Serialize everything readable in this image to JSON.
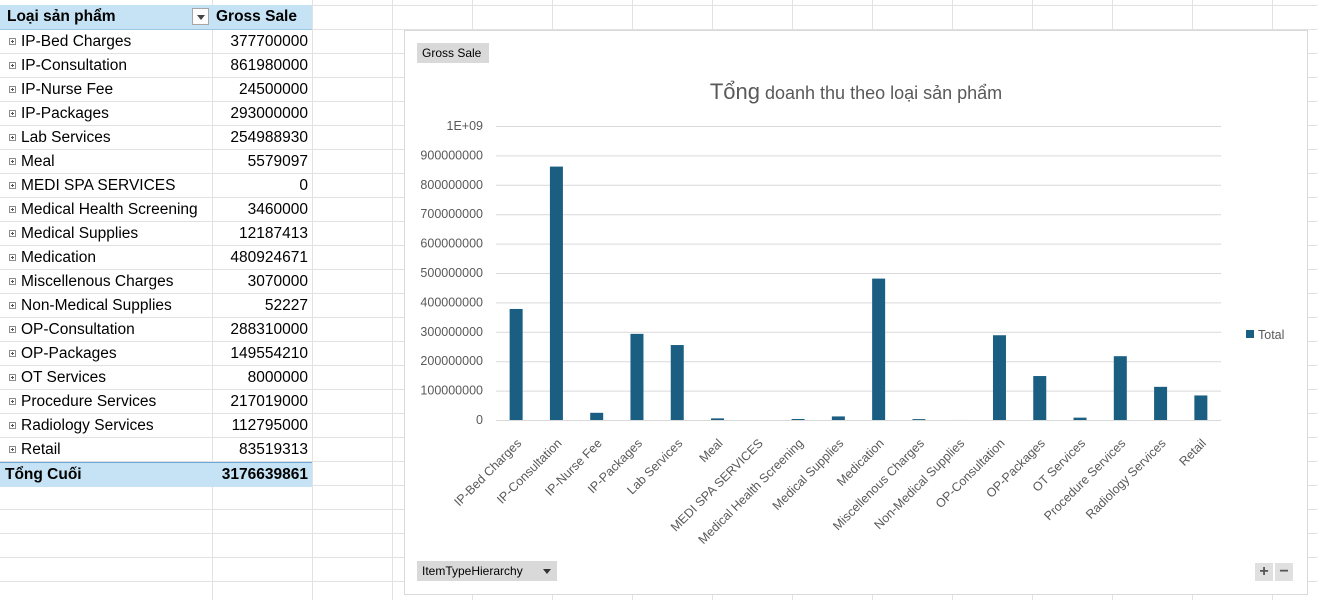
{
  "pivot": {
    "header": {
      "row_label": "Loại sản phẩm",
      "value_label": "Gross Sale"
    },
    "rows": [
      {
        "label": "IP-Bed Charges",
        "value": "377700000"
      },
      {
        "label": "IP-Consultation",
        "value": "861980000"
      },
      {
        "label": "IP-Nurse Fee",
        "value": "24500000"
      },
      {
        "label": "IP-Packages",
        "value": "293000000"
      },
      {
        "label": "Lab Services",
        "value": "254988930"
      },
      {
        "label": "Meal",
        "value": "5579097"
      },
      {
        "label": "MEDI SPA SERVICES",
        "value": "0"
      },
      {
        "label": "Medical Health Screening",
        "value": "3460000"
      },
      {
        "label": "Medical Supplies",
        "value": "12187413"
      },
      {
        "label": "Medication",
        "value": "480924671"
      },
      {
        "label": "Miscellenous Charges",
        "value": "3070000"
      },
      {
        "label": "Non-Medical Supplies",
        "value": "52227"
      },
      {
        "label": "OP-Consultation",
        "value": "288310000"
      },
      {
        "label": "OP-Packages",
        "value": "149554210"
      },
      {
        "label": "OT Services",
        "value": "8000000"
      },
      {
        "label": "Procedure Services",
        "value": "217019000"
      },
      {
        "label": "Radiology Services",
        "value": "112795000"
      },
      {
        "label": "Retail",
        "value": "83519313"
      }
    ],
    "total": {
      "label": "Tổng Cuối",
      "value": "3176639861"
    }
  },
  "chart": {
    "value_field_button": "Gross Sale",
    "axis_field_button": "ItemTypeHierarchy",
    "zoom_in_label": "+",
    "zoom_out_label": "−",
    "title_big": "Tổng",
    "title_rest": "doanh thu theo loại sản phẩm",
    "legend_label": "Total",
    "bar_color": "#1a5f82"
  },
  "chart_data": {
    "type": "bar",
    "title": "Tổng doanh thu theo loại sản phẩm",
    "xlabel": "",
    "ylabel": "",
    "ylim": [
      0,
      1000000000
    ],
    "ytick_labels": [
      "0",
      "100000000",
      "200000000",
      "300000000",
      "400000000",
      "500000000",
      "600000000",
      "700000000",
      "800000000",
      "900000000",
      "1E+09"
    ],
    "grid": true,
    "legend": "right",
    "categories": [
      "IP-Bed Charges",
      "IP-Consultation",
      "IP-Nurse Fee",
      "IP-Packages",
      "Lab Services",
      "Meal",
      "MEDI SPA SERVICES",
      "Medical Health Screening",
      "Medical Supplies",
      "Medication",
      "Miscellenous Charges",
      "Non-Medical Supplies",
      "OP-Consultation",
      "OP-Packages",
      "OT Services",
      "Procedure Services",
      "Radiology Services",
      "Retail"
    ],
    "series": [
      {
        "name": "Total",
        "values": [
          377700000,
          861980000,
          24500000,
          293000000,
          254988930,
          5579097,
          0,
          3460000,
          12187413,
          480924671,
          3070000,
          52227,
          288310000,
          149554210,
          8000000,
          217019000,
          112795000,
          83519313
        ]
      }
    ]
  }
}
